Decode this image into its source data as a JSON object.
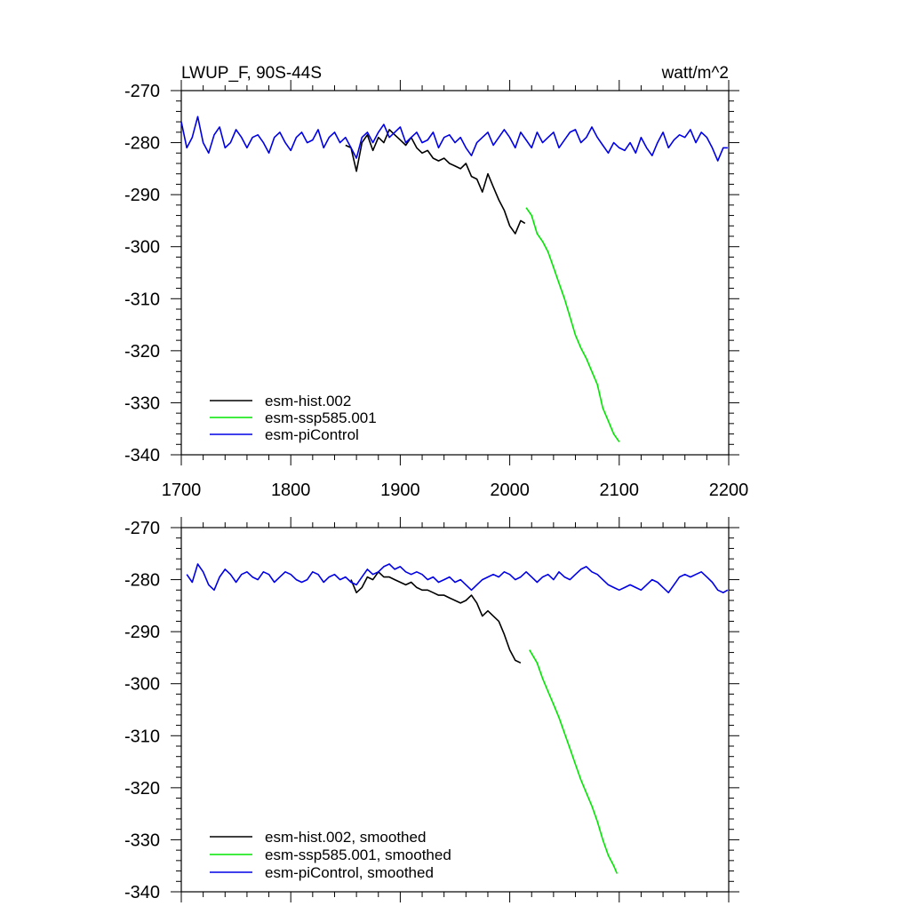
{
  "colors": {
    "hist": "#000000",
    "ssp": "#00e600",
    "pi": "#0000e6",
    "axis": "#000000",
    "background": "#ffffff"
  },
  "chart_data": [
    {
      "type": "line",
      "title": "LWUP_F, 90S-44S",
      "units": "watt/m^2",
      "xlim": [
        1700,
        2200
      ],
      "ylim": [
        -340,
        -270
      ],
      "xticks": [
        1700,
        1800,
        1900,
        2000,
        2100,
        2200
      ],
      "xtick_labels": [
        "1700",
        "1800",
        "1900",
        "2000",
        "2100",
        "2200"
      ],
      "yticks": [
        -340,
        -330,
        -320,
        -310,
        -300,
        -290,
        -280,
        -270
      ],
      "ytick_labels": [
        "-340",
        "-330",
        "-320",
        "-310",
        "-300",
        "-290",
        "-280",
        "-270"
      ],
      "legend_position": "bottom-left",
      "series": [
        {
          "name": "esm-hist.002",
          "color": "#000000",
          "x": [
            1850,
            1855,
            1860,
            1865,
            1870,
            1875,
            1880,
            1885,
            1890,
            1895,
            1900,
            1905,
            1910,
            1915,
            1920,
            1925,
            1930,
            1935,
            1940,
            1945,
            1950,
            1955,
            1960,
            1965,
            1970,
            1975,
            1980,
            1985,
            1990,
            1995,
            2000,
            2005,
            2010,
            2014
          ],
          "y": [
            -280.5,
            -281,
            -285.5,
            -280,
            -278.5,
            -281.5,
            -279,
            -280,
            -277.5,
            -278.5,
            -279.5,
            -280.5,
            -279,
            -281,
            -282,
            -281.5,
            -283,
            -283.5,
            -283,
            -284,
            -284.5,
            -285,
            -284,
            -286.5,
            -287,
            -289.5,
            -286,
            -288.5,
            -291,
            -293,
            -296,
            -297.5,
            -295,
            -295.5
          ]
        },
        {
          "name": "esm-ssp585.001",
          "color": "#00e600",
          "x": [
            2015,
            2020,
            2025,
            2030,
            2035,
            2040,
            2045,
            2050,
            2055,
            2060,
            2065,
            2070,
            2075,
            2080,
            2085,
            2090,
            2095,
            2100
          ],
          "y": [
            -292.5,
            -294,
            -297.5,
            -299,
            -301,
            -304,
            -307,
            -310,
            -313.5,
            -317,
            -319.5,
            -321.5,
            -324,
            -326.5,
            -331,
            -333.5,
            -336,
            -337.5
          ]
        },
        {
          "name": "esm-piControl",
          "color": "#0000e6",
          "x": [
            1700,
            1705,
            1710,
            1715,
            1720,
            1725,
            1730,
            1735,
            1740,
            1745,
            1750,
            1755,
            1760,
            1765,
            1770,
            1775,
            1780,
            1785,
            1790,
            1795,
            1800,
            1805,
            1810,
            1815,
            1820,
            1825,
            1830,
            1835,
            1840,
            1845,
            1850,
            1855,
            1860,
            1865,
            1870,
            1875,
            1880,
            1885,
            1890,
            1895,
            1900,
            1905,
            1910,
            1915,
            1920,
            1925,
            1930,
            1935,
            1940,
            1945,
            1950,
            1955,
            1960,
            1965,
            1970,
            1975,
            1980,
            1985,
            1990,
            1995,
            2000,
            2005,
            2010,
            2015,
            2020,
            2025,
            2030,
            2035,
            2040,
            2045,
            2050,
            2055,
            2060,
            2065,
            2070,
            2075,
            2080,
            2085,
            2090,
            2095,
            2100,
            2105,
            2110,
            2115,
            2120,
            2125,
            2130,
            2135,
            2140,
            2145,
            2150,
            2155,
            2160,
            2165,
            2170,
            2175,
            2180,
            2185,
            2190,
            2195,
            2199
          ],
          "y": [
            -276,
            -281,
            -279,
            -275,
            -280,
            -282,
            -278.5,
            -277,
            -281,
            -280,
            -277.5,
            -279,
            -281,
            -279,
            -278.5,
            -280,
            -282,
            -279,
            -278,
            -280,
            -281.5,
            -279,
            -278,
            -280,
            -279.5,
            -277.5,
            -281,
            -279,
            -278,
            -280,
            -279,
            -281,
            -283,
            -279,
            -278,
            -280,
            -278,
            -276.5,
            -279,
            -278,
            -277,
            -280,
            -279,
            -278,
            -280,
            -279.5,
            -278,
            -281,
            -279,
            -278.5,
            -280,
            -279,
            -281,
            -282.5,
            -280,
            -279,
            -278,
            -280.5,
            -279,
            -277.5,
            -279,
            -281,
            -278,
            -279.5,
            -281,
            -278,
            -280,
            -279,
            -278,
            -281,
            -279.5,
            -278,
            -277.5,
            -280,
            -279,
            -277,
            -279,
            -280.5,
            -282,
            -280,
            -281,
            -281.5,
            -280,
            -282,
            -279,
            -281,
            -282.5,
            -280,
            -278,
            -281,
            -279.5,
            -278.5,
            -279,
            -277.5,
            -280,
            -278,
            -279,
            -281,
            -283.5,
            -281,
            -281
          ]
        }
      ]
    },
    {
      "type": "line",
      "xlim": [
        1700,
        2200
      ],
      "ylim": [
        -340,
        -270
      ],
      "yticks": [
        -340,
        -330,
        -320,
        -310,
        -300,
        -290,
        -280,
        -270
      ],
      "ytick_labels": [
        "-340",
        "-330",
        "-320",
        "-310",
        "-300",
        "-290",
        "-280",
        "-270"
      ],
      "legend_position": "bottom-left",
      "series": [
        {
          "name": "esm-hist.002, smoothed",
          "color": "#000000",
          "x": [
            1855,
            1860,
            1865,
            1870,
            1875,
            1880,
            1885,
            1890,
            1895,
            1900,
            1905,
            1910,
            1915,
            1920,
            1925,
            1930,
            1935,
            1940,
            1945,
            1950,
            1955,
            1960,
            1965,
            1970,
            1975,
            1980,
            1985,
            1990,
            1995,
            2000,
            2005,
            2010
          ],
          "y": [
            -280,
            -282.5,
            -281.5,
            -279.5,
            -280,
            -278.5,
            -279.5,
            -279.5,
            -280,
            -280.5,
            -281,
            -280.5,
            -281.5,
            -282,
            -282,
            -282.5,
            -283,
            -283,
            -283.5,
            -284,
            -284.5,
            -284,
            -283,
            -284.5,
            -287,
            -286,
            -287,
            -288,
            -290.5,
            -293.5,
            -295.5,
            -296
          ]
        },
        {
          "name": "esm-ssp585.001, smoothed",
          "color": "#00e600",
          "x": [
            2018,
            2025,
            2030,
            2035,
            2040,
            2045,
            2050,
            2055,
            2060,
            2065,
            2070,
            2075,
            2080,
            2085,
            2090,
            2095,
            2098
          ],
          "y": [
            -293.5,
            -296,
            -299,
            -301.5,
            -304,
            -306.5,
            -309.5,
            -312.5,
            -315.5,
            -318.5,
            -321,
            -323.5,
            -326.5,
            -330,
            -333,
            -335,
            -336.5
          ]
        },
        {
          "name": "esm-piControl, smoothed",
          "color": "#0000e6",
          "x": [
            1705,
            1710,
            1715,
            1720,
            1725,
            1730,
            1735,
            1740,
            1745,
            1750,
            1755,
            1760,
            1765,
            1770,
            1775,
            1780,
            1785,
            1790,
            1795,
            1800,
            1805,
            1810,
            1815,
            1820,
            1825,
            1830,
            1835,
            1840,
            1845,
            1850,
            1855,
            1860,
            1865,
            1870,
            1875,
            1880,
            1885,
            1890,
            1895,
            1900,
            1905,
            1910,
            1915,
            1920,
            1925,
            1930,
            1935,
            1940,
            1945,
            1950,
            1955,
            1960,
            1965,
            1970,
            1975,
            1980,
            1985,
            1990,
            1995,
            2000,
            2005,
            2010,
            2015,
            2020,
            2025,
            2030,
            2035,
            2040,
            2045,
            2050,
            2055,
            2060,
            2065,
            2070,
            2075,
            2080,
            2085,
            2090,
            2095,
            2100,
            2105,
            2110,
            2115,
            2120,
            2125,
            2130,
            2135,
            2140,
            2145,
            2150,
            2155,
            2160,
            2165,
            2170,
            2175,
            2180,
            2185,
            2190,
            2195,
            2199
          ],
          "y": [
            -279,
            -280.5,
            -277,
            -278.5,
            -281,
            -282,
            -279.5,
            -278,
            -279,
            -280.5,
            -279,
            -278.5,
            -279.5,
            -280,
            -278.5,
            -279,
            -280.5,
            -279.5,
            -278.5,
            -279,
            -280,
            -280.5,
            -280,
            -278.5,
            -279,
            -280.5,
            -279.5,
            -279,
            -280,
            -279.5,
            -280.5,
            -281,
            -279.5,
            -278,
            -279,
            -278.5,
            -277.5,
            -277,
            -278,
            -277.5,
            -278.5,
            -279,
            -278.5,
            -279,
            -280,
            -279.5,
            -280.5,
            -280,
            -279.5,
            -280.5,
            -280,
            -281,
            -282,
            -281,
            -280,
            -279.5,
            -279,
            -279.5,
            -278.5,
            -279,
            -280,
            -279.5,
            -278.5,
            -279.5,
            -280.5,
            -279.5,
            -279,
            -280,
            -278.5,
            -279.5,
            -280,
            -279,
            -278,
            -277.5,
            -278.5,
            -279,
            -280,
            -281,
            -281.5,
            -282,
            -281.5,
            -281,
            -281.5,
            -282,
            -281,
            -280,
            -280.5,
            -281.5,
            -282.5,
            -281,
            -279.5,
            -279,
            -279.5,
            -279,
            -278.5,
            -279.5,
            -280.5,
            -282,
            -282.5,
            -282
          ]
        }
      ]
    }
  ]
}
